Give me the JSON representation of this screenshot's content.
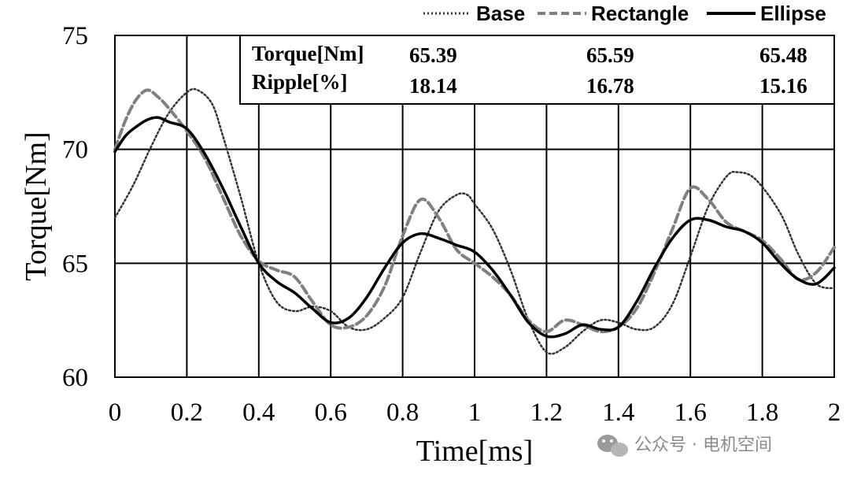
{
  "watermark": "公众号 · 电机空间",
  "chart_data": {
    "type": "line",
    "title": "",
    "xlabel": "Time[ms]",
    "ylabel": "Torque[Nm]",
    "xlim": [
      0,
      2
    ],
    "ylim": [
      60,
      75
    ],
    "xticks": [
      "0",
      "0.2",
      "0.4",
      "0.6",
      "0.8",
      "1",
      "1.2",
      "1.4",
      "1.6",
      "1.8",
      "2"
    ],
    "yticks": [
      "60",
      "65",
      "70",
      "75"
    ],
    "grid": true,
    "legend_position": "top",
    "series": [
      {
        "name": "Base",
        "style": "dotted",
        "color": "#333333",
        "x": [
          0,
          0.05,
          0.1,
          0.15,
          0.2,
          0.23,
          0.27,
          0.3,
          0.35,
          0.4,
          0.45,
          0.5,
          0.55,
          0.6,
          0.65,
          0.7,
          0.75,
          0.8,
          0.85,
          0.9,
          0.95,
          0.98,
          1.0,
          1.05,
          1.1,
          1.15,
          1.2,
          1.25,
          1.3,
          1.35,
          1.4,
          1.45,
          1.5,
          1.55,
          1.6,
          1.65,
          1.7,
          1.73,
          1.78,
          1.85,
          1.9,
          1.95,
          2.0
        ],
        "y": [
          67.0,
          68.4,
          70.1,
          71.6,
          72.5,
          72.6,
          72.0,
          70.6,
          67.9,
          65.0,
          63.3,
          62.9,
          63.1,
          62.9,
          62.2,
          62.1,
          62.6,
          63.5,
          65.5,
          67.3,
          68.0,
          68.0,
          67.6,
          66.5,
          64.7,
          62.5,
          61.1,
          61.3,
          62.0,
          62.5,
          62.4,
          62.1,
          62.2,
          63.2,
          65.3,
          67.5,
          68.8,
          69.0,
          68.7,
          67.2,
          65.4,
          64.1,
          63.9
        ]
      },
      {
        "name": "Rectangle",
        "style": "dashed",
        "color": "#808080",
        "x": [
          0,
          0.03,
          0.06,
          0.09,
          0.12,
          0.15,
          0.2,
          0.25,
          0.3,
          0.35,
          0.4,
          0.45,
          0.5,
          0.55,
          0.6,
          0.65,
          0.7,
          0.75,
          0.8,
          0.85,
          0.9,
          0.95,
          1.0,
          1.05,
          1.1,
          1.15,
          1.2,
          1.25,
          1.3,
          1.35,
          1.4,
          1.45,
          1.5,
          1.55,
          1.6,
          1.65,
          1.7,
          1.75,
          1.8,
          1.85,
          1.9,
          1.95,
          2.0
        ],
        "y": [
          70.0,
          71.3,
          72.2,
          72.6,
          72.3,
          71.8,
          70.8,
          69.6,
          67.9,
          66.2,
          65.1,
          64.7,
          64.4,
          63.3,
          62.3,
          62.2,
          62.7,
          64.0,
          66.2,
          67.8,
          67.0,
          65.6,
          65.0,
          64.4,
          63.6,
          62.5,
          62.0,
          62.5,
          62.3,
          62.0,
          62.2,
          63.0,
          64.6,
          66.5,
          68.3,
          67.8,
          66.8,
          66.4,
          66.0,
          65.2,
          64.3,
          64.6,
          65.7
        ]
      },
      {
        "name": "Ellipse",
        "style": "solid",
        "color": "#000000",
        "x": [
          0,
          0.03,
          0.06,
          0.09,
          0.12,
          0.15,
          0.2,
          0.25,
          0.3,
          0.35,
          0.4,
          0.45,
          0.5,
          0.55,
          0.6,
          0.65,
          0.7,
          0.75,
          0.8,
          0.85,
          0.9,
          0.95,
          1.0,
          1.05,
          1.1,
          1.15,
          1.2,
          1.25,
          1.3,
          1.35,
          1.4,
          1.45,
          1.5,
          1.55,
          1.6,
          1.65,
          1.7,
          1.75,
          1.8,
          1.85,
          1.9,
          1.95,
          2.0
        ],
        "y": [
          69.9,
          70.6,
          71.0,
          71.3,
          71.4,
          71.2,
          70.9,
          69.8,
          68.3,
          66.6,
          65.0,
          64.2,
          63.7,
          63.0,
          62.4,
          62.6,
          63.5,
          64.8,
          65.9,
          66.3,
          66.1,
          65.8,
          65.5,
          64.7,
          63.6,
          62.4,
          61.8,
          61.9,
          62.3,
          62.1,
          62.2,
          63.3,
          64.8,
          66.1,
          66.9,
          66.9,
          66.6,
          66.4,
          65.9,
          65.0,
          64.3,
          64.1,
          64.8
        ]
      }
    ],
    "table": {
      "rows": [
        {
          "label": "Torque[Nm]",
          "values": [
            "65.39",
            "65.59",
            "65.48"
          ]
        },
        {
          "label": "Ripple[%]",
          "values": [
            "18.14",
            "16.78",
            "15.16"
          ]
        }
      ]
    }
  }
}
